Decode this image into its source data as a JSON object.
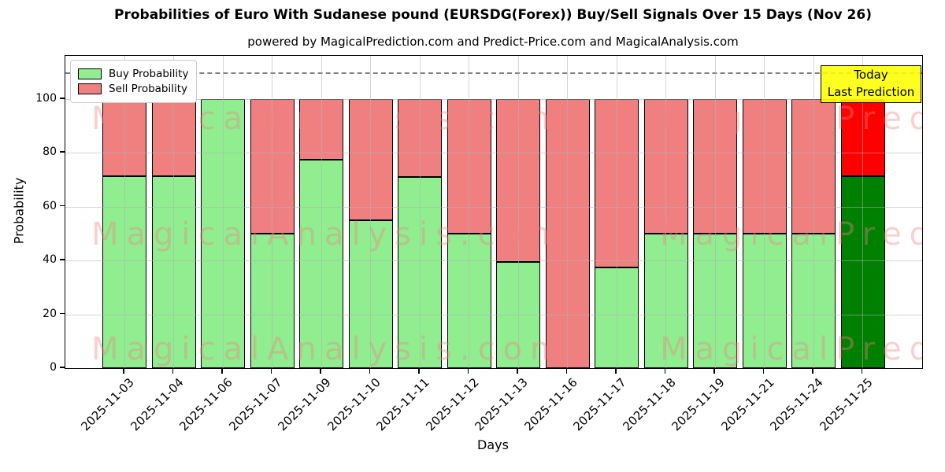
{
  "chart_data": {
    "type": "bar",
    "stacked": true,
    "title": "Probabilities of Euro With Sudanese pound (EURSDG(Forex)) Buy/Sell Signals Over 15 Days (Nov 26)",
    "subtitle": "powered by MagicalPrediction.com and Predict-Price.com and MagicalAnalysis.com",
    "xlabel": "Days",
    "ylabel": "Probability",
    "categories": [
      "2025-11-03",
      "2025-11-04",
      "2025-11-06",
      "2025-11-07",
      "2025-11-09",
      "2025-11-10",
      "2025-11-11",
      "2025-11-12",
      "2025-11-13",
      "2025-11-16",
      "2025-11-17",
      "2025-11-18",
      "2025-11-19",
      "2025-11-21",
      "2025-11-24",
      "2025-11-25"
    ],
    "series": [
      {
        "name": "Buy Probability",
        "color": "#90ee90",
        "values": [
          71.4,
          71.4,
          100,
          50,
          77.5,
          55,
          71,
          50,
          39.5,
          0,
          37.5,
          50,
          50,
          50,
          50,
          71.4
        ]
      },
      {
        "name": "Sell Probability",
        "color": "#f08080",
        "values": [
          28.6,
          28.6,
          0,
          50,
          22.5,
          45,
          29,
          50,
          60.5,
          100,
          62.5,
          50,
          50,
          50,
          50,
          28.6
        ]
      }
    ],
    "today_bar": {
      "index": 15,
      "buy_color": "#008000",
      "sell_color": "#ff0000"
    },
    "ylim": [
      0,
      116
    ],
    "yticks": [
      0,
      20,
      40,
      60,
      80,
      100
    ],
    "cutoff_line": 110,
    "grid": true,
    "legend_position": "upper-left",
    "annotation": {
      "line1": "Today",
      "line2": "Last Prediction",
      "bg_color": "#ffff00"
    },
    "watermarks": {
      "left_text": "MagicalAnalysis.com",
      "right_text": "MagicalPrediction.com",
      "color": "#f08080"
    }
  }
}
